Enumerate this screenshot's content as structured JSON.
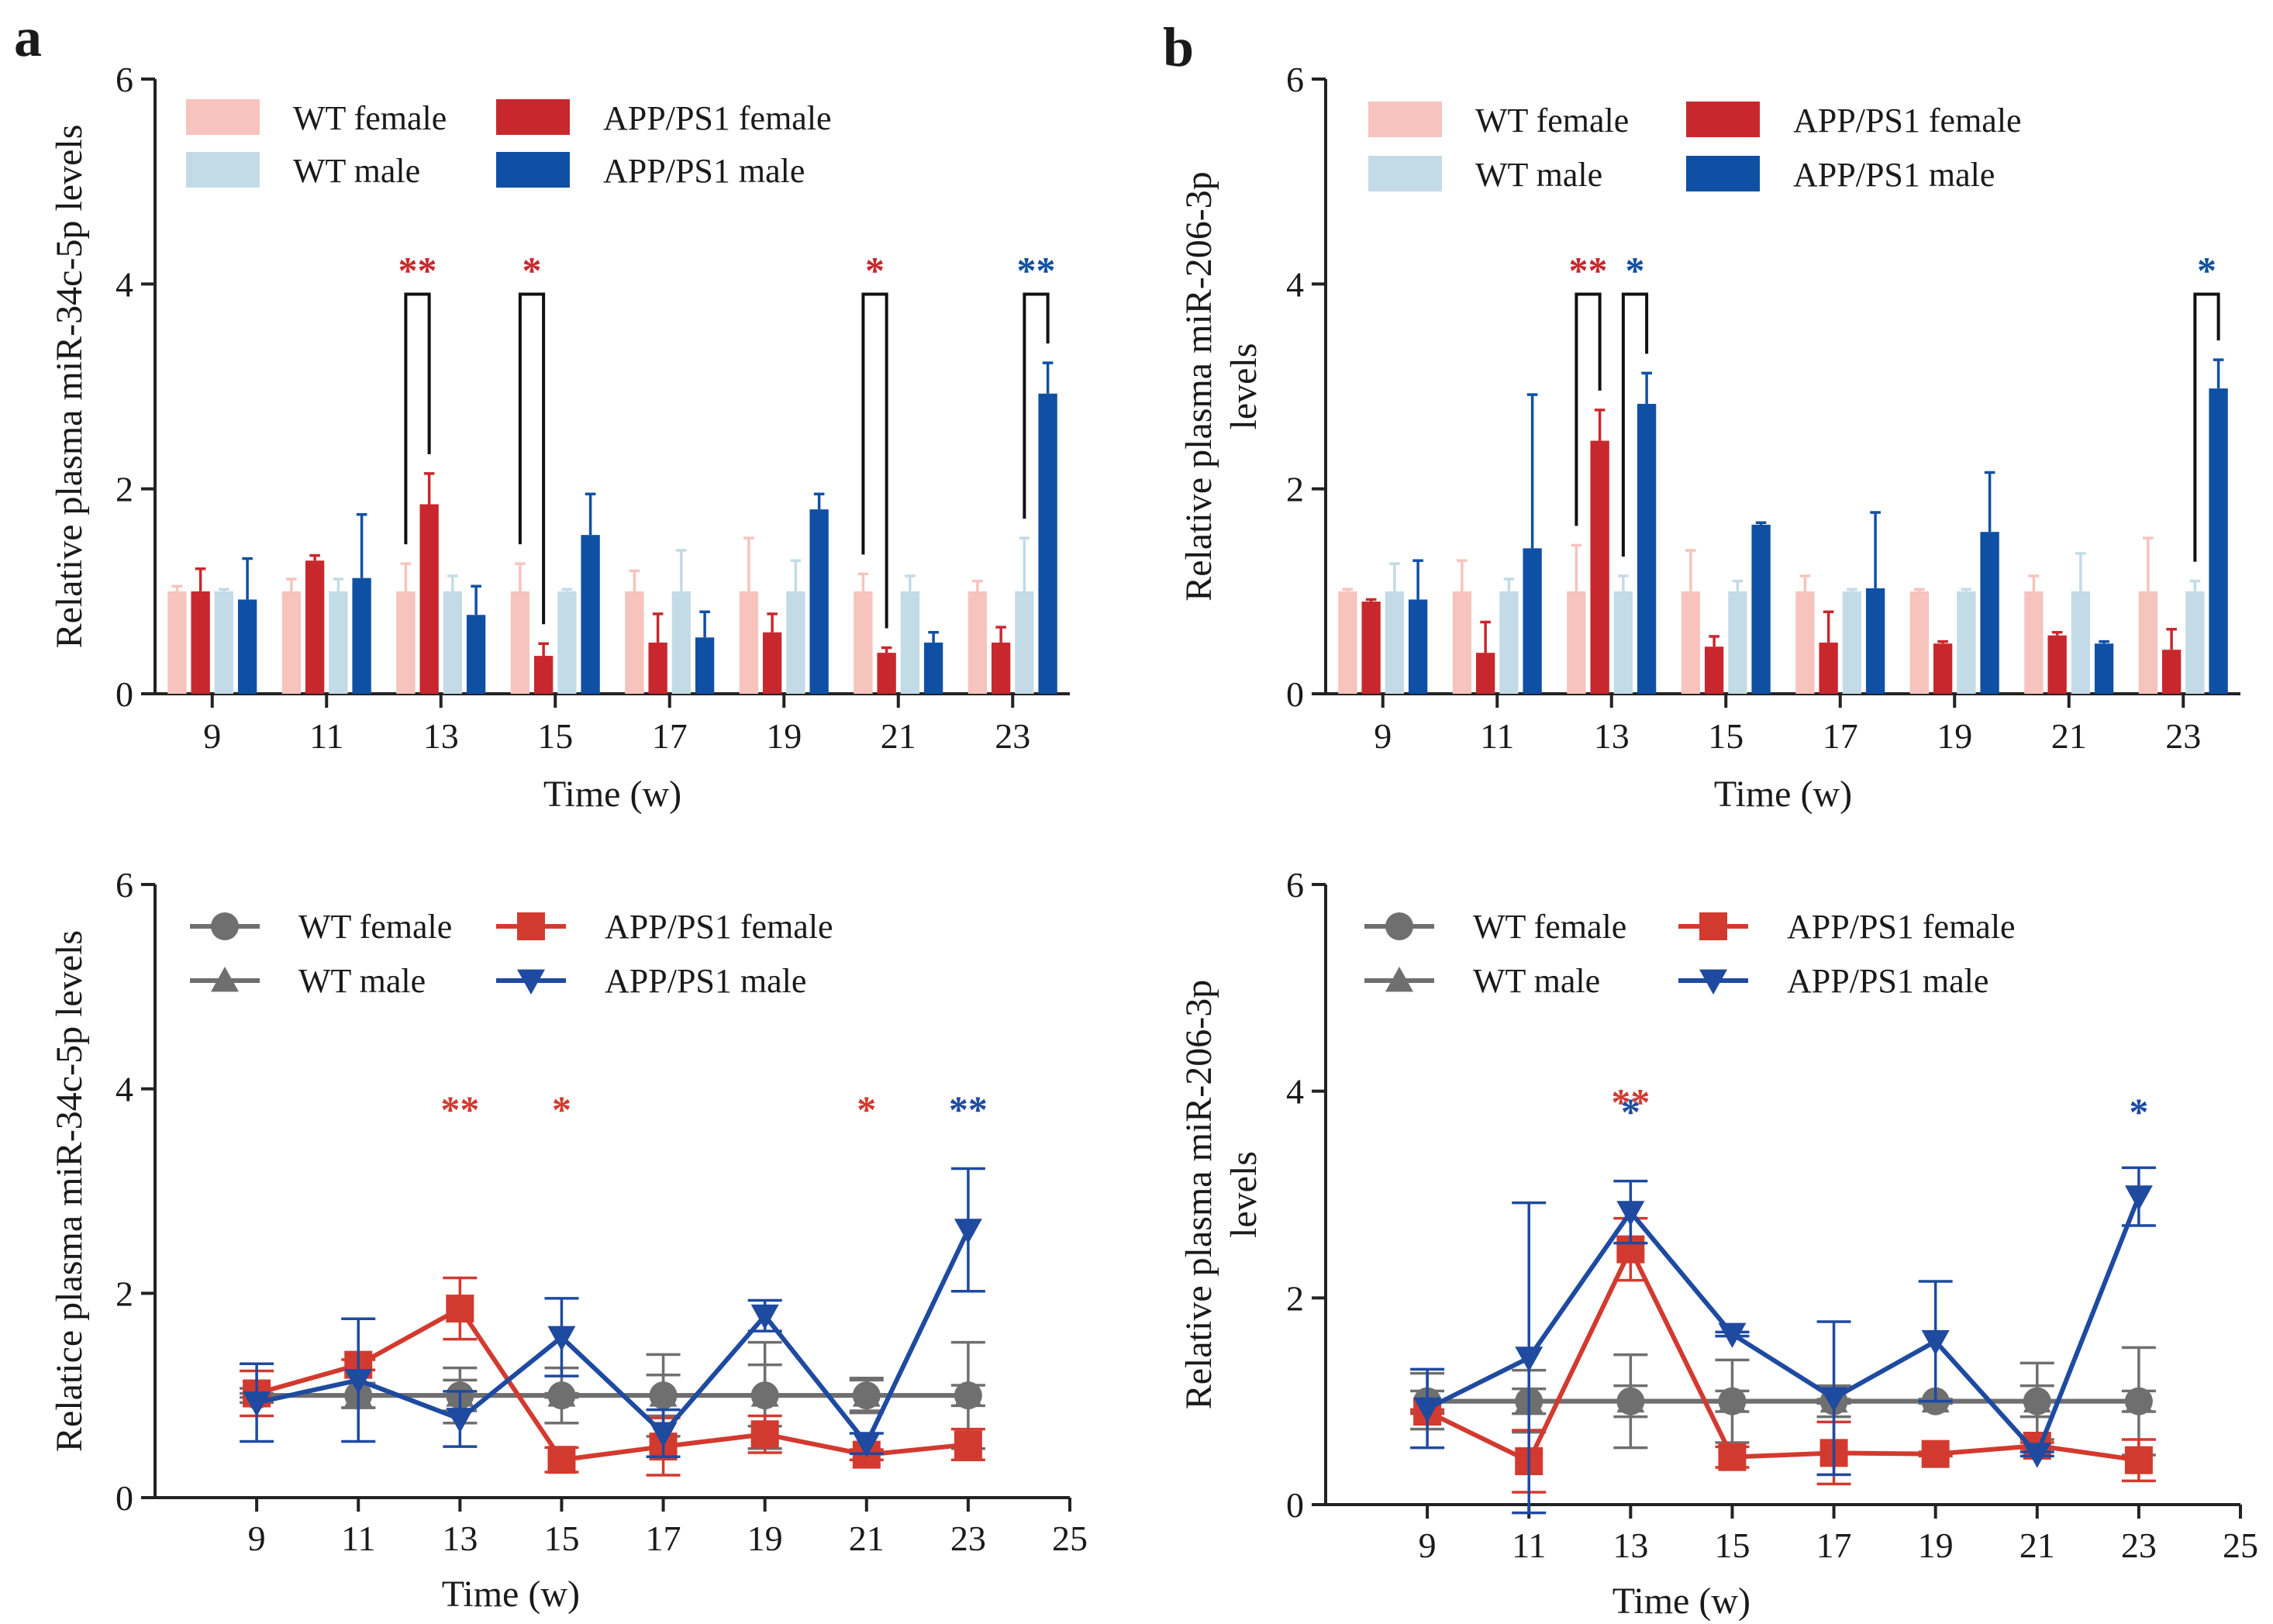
{
  "colors": {
    "wt_female_bar": "#f6c4bd",
    "wt_male_bar": "#c3dbe6",
    "app_female": "#c8282d",
    "app_male": "#1050a4",
    "wt_line": "#6f6f6f",
    "app_female_line": "#d33a2f",
    "app_male_line": "#1e4aa0"
  },
  "panel_labels": [
    "a",
    "b"
  ],
  "chart_data": [
    {
      "id": "a-bar",
      "type": "bar",
      "panel": "a",
      "ylabel": "Relative plasma miR-34c-5p levels",
      "xlabel": "Time (w)",
      "ylim": [
        0,
        6
      ],
      "yticks": [
        0,
        2,
        4,
        6
      ],
      "categories": [
        "9",
        "11",
        "13",
        "15",
        "17",
        "19",
        "21",
        "23"
      ],
      "legend": [
        "WT female",
        "WT male",
        "APP/PS1 female",
        "APP/PS1 male"
      ],
      "series": [
        {
          "name": "WT female",
          "color_key": "wt_female_bar",
          "values": [
            1.0,
            1.0,
            1.0,
            1.0,
            1.0,
            1.0,
            1.0,
            1.0
          ],
          "errors": [
            0.05,
            0.12,
            0.27,
            0.27,
            0.2,
            0.52,
            0.17,
            0.1
          ]
        },
        {
          "name": "APP/PS1 female",
          "color_key": "app_female",
          "values": [
            1.0,
            1.3,
            1.85,
            0.37,
            0.5,
            0.6,
            0.4,
            0.5
          ],
          "errors": [
            0.22,
            0.05,
            0.3,
            0.12,
            0.28,
            0.18,
            0.05,
            0.15
          ]
        },
        {
          "name": "WT male",
          "color_key": "wt_male_bar",
          "values": [
            1.0,
            1.0,
            1.0,
            1.0,
            1.0,
            1.0,
            1.0,
            1.0
          ],
          "errors": [
            0.02,
            0.12,
            0.15,
            0.02,
            0.4,
            0.3,
            0.15,
            0.52
          ]
        },
        {
          "name": "APP/PS1 male",
          "color_key": "app_male",
          "values": [
            0.92,
            1.13,
            0.77,
            1.55,
            0.55,
            1.8,
            0.5,
            2.93
          ],
          "errors": [
            0.4,
            0.62,
            0.28,
            0.4,
            0.25,
            0.15,
            0.1,
            0.3
          ]
        }
      ],
      "significance": [
        {
          "category": "13",
          "label": "**",
          "color_key": "app_female",
          "pair": [
            "WT female",
            "APP/PS1 female"
          ]
        },
        {
          "category": "15",
          "label": "*",
          "color_key": "app_female",
          "pair": [
            "WT female",
            "APP/PS1 female"
          ]
        },
        {
          "category": "21",
          "label": "*",
          "color_key": "app_female",
          "pair": [
            "WT female",
            "APP/PS1 female"
          ]
        },
        {
          "category": "23",
          "label": "**",
          "color_key": "app_male",
          "pair": [
            "WT male",
            "APP/PS1 male"
          ]
        }
      ]
    },
    {
      "id": "b-bar",
      "type": "bar",
      "panel": "b",
      "ylabel": "Relative plasma miR-206-3p levels",
      "xlabel": "Time (w)",
      "ylim": [
        0,
        6
      ],
      "yticks": [
        0,
        2,
        4,
        6
      ],
      "categories": [
        "9",
        "11",
        "13",
        "15",
        "17",
        "19",
        "21",
        "23"
      ],
      "legend": [
        "WT female",
        "WT male",
        "APP/PS1 female",
        "APP/PS1 male"
      ],
      "series": [
        {
          "name": "WT female",
          "color_key": "wt_female_bar",
          "values": [
            1.0,
            1.0,
            1.0,
            1.0,
            1.0,
            1.0,
            1.0,
            1.0
          ],
          "errors": [
            0.02,
            0.3,
            0.45,
            0.4,
            0.15,
            0.02,
            0.15,
            0.52
          ]
        },
        {
          "name": "APP/PS1 female",
          "color_key": "app_female",
          "values": [
            0.9,
            0.4,
            2.47,
            0.46,
            0.5,
            0.49,
            0.57,
            0.43
          ],
          "errors": [
            0.02,
            0.3,
            0.3,
            0.1,
            0.3,
            0.02,
            0.03,
            0.2
          ]
        },
        {
          "name": "WT male",
          "color_key": "wt_male_bar",
          "values": [
            1.0,
            1.0,
            1.0,
            1.0,
            1.0,
            1.0,
            1.0,
            1.0
          ],
          "errors": [
            0.27,
            0.12,
            0.15,
            0.1,
            0.02,
            0.02,
            0.37,
            0.1
          ]
        },
        {
          "name": "APP/PS1 male",
          "color_key": "app_male",
          "values": [
            0.92,
            1.42,
            2.83,
            1.65,
            1.03,
            1.58,
            0.49,
            2.98
          ],
          "errors": [
            0.38,
            1.5,
            0.3,
            0.02,
            0.74,
            0.58,
            0.02,
            0.28
          ]
        }
      ],
      "significance": [
        {
          "category": "13",
          "label": "**",
          "color_key": "app_female",
          "pair": [
            "WT female",
            "APP/PS1 female"
          ]
        },
        {
          "category": "13",
          "label": "*",
          "color_key": "app_male",
          "pair": [
            "WT male",
            "APP/PS1 male"
          ]
        },
        {
          "category": "23",
          "label": "*",
          "color_key": "app_male",
          "pair": [
            "WT male",
            "APP/PS1 male"
          ]
        }
      ]
    },
    {
      "id": "a-line",
      "type": "line",
      "panel": "a",
      "ylabel": "Relatice plasma miR-34c-5p levels",
      "xlabel": "Time (w)",
      "xlim": [
        7,
        25
      ],
      "xticks": [
        9,
        11,
        13,
        15,
        17,
        19,
        21,
        23,
        25
      ],
      "ylim": [
        0,
        6
      ],
      "yticks": [
        0,
        2,
        4,
        6
      ],
      "legend": [
        "WT female",
        "WT male",
        "APP/PS1 female",
        "APP/PS1 male"
      ],
      "x": [
        9,
        11,
        13,
        15,
        17,
        19,
        21,
        23
      ],
      "series": [
        {
          "name": "WT female",
          "color_key": "wt_line",
          "marker": "circle",
          "values": [
            1.0,
            1.0,
            1.0,
            1.0,
            1.0,
            1.0,
            1.0,
            1.0
          ],
          "errors": [
            0.07,
            0.12,
            0.27,
            0.27,
            0.2,
            0.52,
            0.17,
            0.1
          ]
        },
        {
          "name": "WT male",
          "color_key": "wt_line",
          "marker": "triangle-up",
          "values": [
            1.0,
            1.0,
            1.0,
            1.0,
            1.0,
            1.0,
            1.0,
            1.0
          ],
          "errors": [
            0.02,
            0.12,
            0.15,
            0.02,
            0.4,
            0.3,
            0.15,
            0.52
          ]
        },
        {
          "name": "APP/PS1 female",
          "color_key": "app_female_line",
          "marker": "square",
          "values": [
            1.02,
            1.3,
            1.85,
            0.37,
            0.5,
            0.62,
            0.42,
            0.52
          ],
          "errors": [
            0.22,
            0.05,
            0.3,
            0.12,
            0.28,
            0.18,
            0.05,
            0.15
          ]
        },
        {
          "name": "APP/PS1 male",
          "color_key": "app_male_line",
          "marker": "triangle-down",
          "values": [
            0.93,
            1.15,
            0.77,
            1.57,
            0.63,
            1.78,
            0.53,
            2.62
          ],
          "errors": [
            0.38,
            0.6,
            0.27,
            0.38,
            0.23,
            0.15,
            0.1,
            0.6
          ]
        }
      ],
      "annotations": [
        {
          "x": 13,
          "label": "**",
          "color_key": "app_female_line",
          "level": 0
        },
        {
          "x": 15,
          "label": "*",
          "color_key": "app_female_line",
          "level": 0
        },
        {
          "x": 21,
          "label": "*",
          "color_key": "app_female_line",
          "level": 0
        },
        {
          "x": 23,
          "label": "**",
          "color_key": "app_male_line",
          "level": 0
        }
      ]
    },
    {
      "id": "b-line",
      "type": "line",
      "panel": "b",
      "ylabel": "Relative plasma miR-206-3p levels",
      "xlabel": "Time (w)",
      "xlim": [
        7,
        25
      ],
      "xticks": [
        9,
        11,
        13,
        15,
        17,
        19,
        21,
        23,
        25
      ],
      "ylim": [
        0,
        6
      ],
      "yticks": [
        0,
        2,
        4,
        6
      ],
      "legend": [
        "WT female",
        "WT male",
        "APP/PS1 female",
        "APP/PS1 male"
      ],
      "x": [
        9,
        11,
        13,
        15,
        17,
        19,
        21,
        23
      ],
      "series": [
        {
          "name": "WT female",
          "color_key": "wt_line",
          "marker": "circle",
          "values": [
            1.0,
            1.0,
            1.0,
            1.0,
            1.0,
            1.0,
            1.0,
            1.0
          ],
          "errors": [
            0.27,
            0.3,
            0.45,
            0.4,
            0.15,
            0.02,
            0.15,
            0.52
          ]
        },
        {
          "name": "WT male",
          "color_key": "wt_line",
          "marker": "triangle-up",
          "values": [
            1.0,
            1.0,
            1.0,
            1.0,
            1.0,
            1.0,
            1.0,
            1.0
          ],
          "errors": [
            0.1,
            0.12,
            0.15,
            0.1,
            0.02,
            0.02,
            0.37,
            0.1
          ]
        },
        {
          "name": "APP/PS1 female",
          "color_key": "app_female_line",
          "marker": "square",
          "values": [
            0.9,
            0.42,
            2.47,
            0.46,
            0.5,
            0.49,
            0.57,
            0.43
          ],
          "errors": [
            0.02,
            0.3,
            0.3,
            0.1,
            0.3,
            0.02,
            0.03,
            0.2
          ]
        },
        {
          "name": "APP/PS1 male",
          "color_key": "app_male_line",
          "marker": "triangle-down",
          "values": [
            0.93,
            1.42,
            2.83,
            1.65,
            1.03,
            1.58,
            0.49,
            2.98
          ],
          "errors": [
            0.38,
            1.5,
            0.3,
            0.02,
            0.74,
            0.58,
            0.02,
            0.28
          ]
        }
      ],
      "annotations": [
        {
          "x": 13,
          "label": "**",
          "color_key": "app_female_line",
          "level": 1
        },
        {
          "x": 13,
          "label": "*",
          "color_key": "app_male_line",
          "level": 0
        },
        {
          "x": 23,
          "label": "*",
          "color_key": "app_male_line",
          "level": 0
        }
      ]
    }
  ]
}
